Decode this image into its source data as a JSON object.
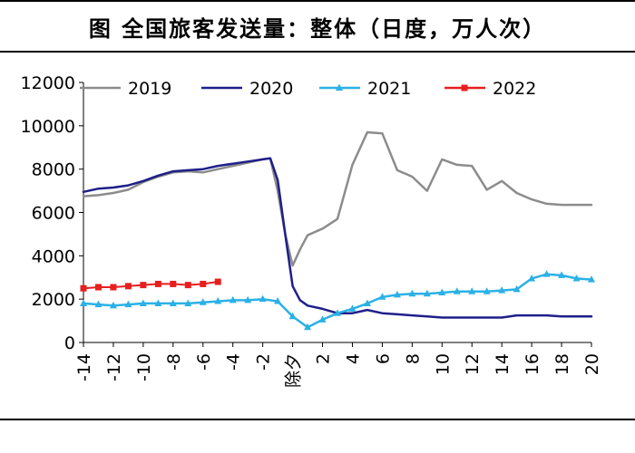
{
  "chart_data": {
    "type": "line",
    "title": "图  全国旅客发送量：整体（日度，万人次）",
    "ylim": [
      0,
      12000
    ],
    "yticks": [
      0,
      2000,
      4000,
      6000,
      8000,
      10000,
      12000
    ],
    "xlim": [
      -14,
      20
    ],
    "xticks": [
      -14,
      -12,
      -10,
      -8,
      -6,
      -4,
      -2,
      0,
      2,
      4,
      6,
      8,
      10,
      12,
      14,
      16,
      18,
      20
    ],
    "xtick_labels": [
      "-14",
      "-12",
      "-10",
      "-8",
      "-6",
      "-4",
      "-2",
      "除夕",
      "2",
      "4",
      "6",
      "8",
      "10",
      "12",
      "14",
      "16",
      "18",
      "20"
    ],
    "legend_position": "top",
    "series": [
      {
        "name": "2019",
        "color": "#8c8c8c",
        "marker": "none",
        "x": [
          -14,
          -13,
          -12,
          -11,
          -10,
          -9,
          -8,
          -7,
          -6,
          -5,
          -4,
          -3,
          -2,
          -1.5,
          -1,
          -0.5,
          0,
          0.5,
          1,
          2,
          3,
          4,
          5,
          6,
          7,
          8,
          9,
          10,
          11,
          12,
          13,
          14,
          15,
          16,
          17,
          18,
          19,
          20
        ],
        "values": [
          6750,
          6800,
          6900,
          7050,
          7400,
          7650,
          7850,
          7900,
          7850,
          8000,
          8150,
          8300,
          8450,
          8500,
          7000,
          5000,
          3550,
          4300,
          4950,
          5250,
          5700,
          8200,
          9700,
          9650,
          7950,
          7650,
          7000,
          8450,
          8200,
          8150,
          7050,
          7450,
          6900,
          6600,
          6400,
          6350,
          6350,
          6350
        ]
      },
      {
        "name": "2020",
        "color": "#1f1f8a",
        "marker": "none",
        "x": [
          -14,
          -13,
          -12,
          -11,
          -10,
          -9,
          -8,
          -7,
          -6,
          -5,
          -4,
          -3,
          -2,
          -1.5,
          -1,
          -0.5,
          0,
          0.5,
          1,
          2,
          3,
          4,
          5,
          6,
          7,
          8,
          9,
          10,
          11,
          12,
          13,
          14,
          15,
          16,
          17,
          18,
          19,
          20
        ],
        "values": [
          6950,
          7100,
          7150,
          7250,
          7450,
          7700,
          7900,
          7950,
          8000,
          8150,
          8250,
          8350,
          8450,
          8500,
          7500,
          5000,
          2600,
          1950,
          1700,
          1550,
          1350,
          1350,
          1500,
          1350,
          1300,
          1250,
          1200,
          1150,
          1150,
          1150,
          1150,
          1150,
          1250,
          1250,
          1250,
          1200,
          1200,
          1200
        ]
      },
      {
        "name": "2021",
        "color": "#2ab1e6",
        "marker": "triangle",
        "x": [
          -14,
          -13,
          -12,
          -11,
          -10,
          -9,
          -8,
          -7,
          -6,
          -5,
          -4,
          -3,
          -2,
          -1,
          0,
          1,
          2,
          3,
          4,
          5,
          6,
          7,
          8,
          9,
          10,
          11,
          12,
          13,
          14,
          15,
          16,
          17,
          18,
          19,
          20
        ],
        "values": [
          1800,
          1750,
          1700,
          1750,
          1800,
          1800,
          1800,
          1800,
          1850,
          1900,
          1950,
          1950,
          2000,
          1900,
          1200,
          700,
          1050,
          1350,
          1550,
          1800,
          2100,
          2200,
          2250,
          2250,
          2300,
          2350,
          2350,
          2350,
          2400,
          2450,
          2950,
          3150,
          3100,
          2950,
          2900
        ]
      },
      {
        "name": "2022",
        "color": "#e81e1e",
        "marker": "square",
        "x": [
          -14,
          -13,
          -12,
          -11,
          -10,
          -9,
          -8,
          -7,
          -6,
          -5
        ],
        "values": [
          2500,
          2550,
          2550,
          2600,
          2650,
          2700,
          2700,
          2650,
          2700,
          2800
        ]
      }
    ]
  }
}
